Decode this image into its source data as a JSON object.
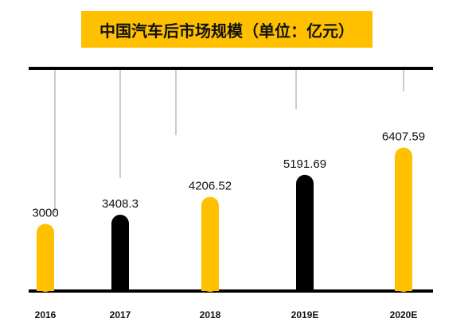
{
  "chart_data": {
    "type": "bar",
    "title": "中国汽车后市场规模（单位：亿元）",
    "categories": [
      "2016",
      "2017",
      "2018",
      "2019E",
      "2020E"
    ],
    "values": [
      3000,
      3408.3,
      4206.52,
      5191.69,
      6407.59
    ],
    "value_labels": [
      "3000",
      "3408.3",
      "4206.52",
      "5191.69",
      "6407.59"
    ],
    "bar_colors": [
      "#FFC000",
      "#000000",
      "#FFC000",
      "#000000",
      "#FFC000"
    ],
    "xlabel": "",
    "ylabel": "",
    "ylim": [
      0,
      7000
    ],
    "grid": false,
    "legend": "none"
  }
}
